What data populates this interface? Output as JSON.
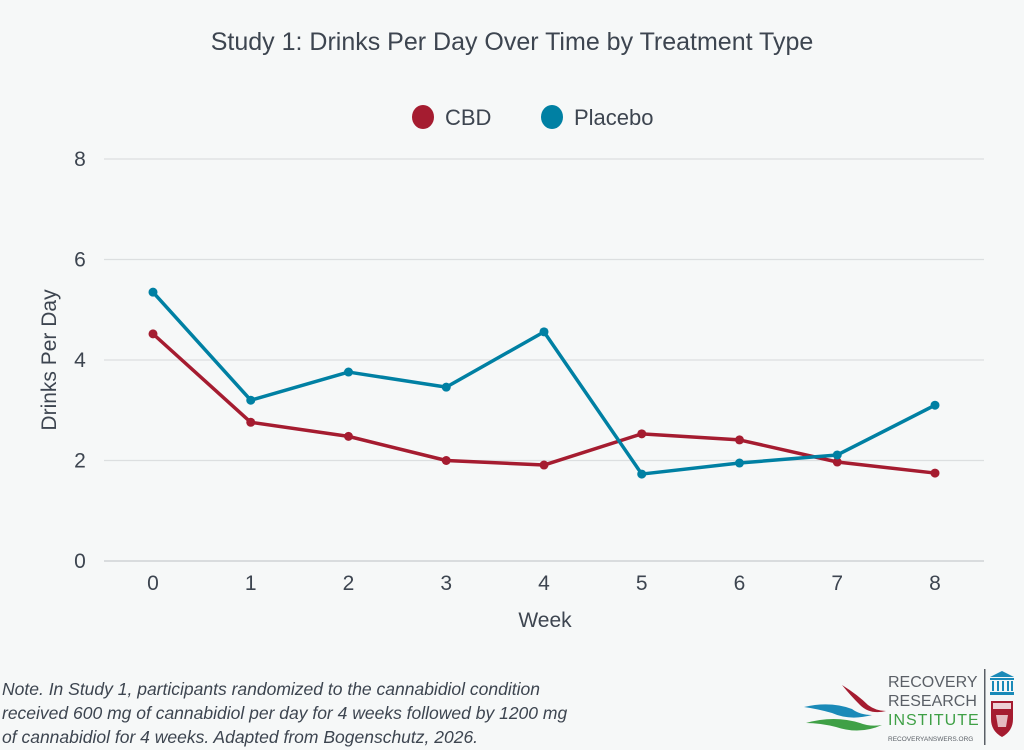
{
  "chart_data": {
    "type": "line",
    "title": "Study 1: Drinks Per Day Over Time by Treatment Type",
    "xlabel": "Week",
    "ylabel": "Drinks Per Day",
    "x": [
      0,
      1,
      2,
      3,
      4,
      5,
      6,
      7,
      8
    ],
    "x_tick_labels": [
      "0",
      "1",
      "2",
      "3",
      "4",
      "5",
      "6",
      "7",
      "8"
    ],
    "ylim": [
      0,
      8
    ],
    "y_ticks": [
      0,
      2,
      4,
      6,
      8
    ],
    "y_tick_labels": [
      "0",
      "2",
      "4",
      "6",
      "8"
    ],
    "grid": true,
    "legend_position": "top-center",
    "series": [
      {
        "name": "CBD",
        "color": "#a51c30",
        "values": [
          4.52,
          2.76,
          2.48,
          2.0,
          1.91,
          2.53,
          2.41,
          1.97,
          1.75
        ]
      },
      {
        "name": "Placebo",
        "color": "#0080a3",
        "values": [
          5.35,
          3.2,
          3.76,
          3.46,
          4.56,
          1.73,
          1.95,
          2.11,
          3.1
        ]
      }
    ]
  },
  "note": {
    "lines": [
      "Note. In Study 1, participants randomized to the cannabidiol condition",
      "received 600 mg of cannabidiol per day for 4 weeks followed by 1200 mg",
      "of cannabidiol for 4 weeks. Adapted from Bogenschutz, 2026."
    ]
  },
  "logo": {
    "line1": "RECOVERY",
    "line2": "RESEARCH",
    "line3": "INSTITUTE",
    "url_text": "RECOVERYANSWERS.ORG",
    "colors": {
      "blue": "#1a8ab8",
      "red": "#a51c30",
      "green": "#3fa046",
      "gray": "#5a5f66"
    }
  }
}
